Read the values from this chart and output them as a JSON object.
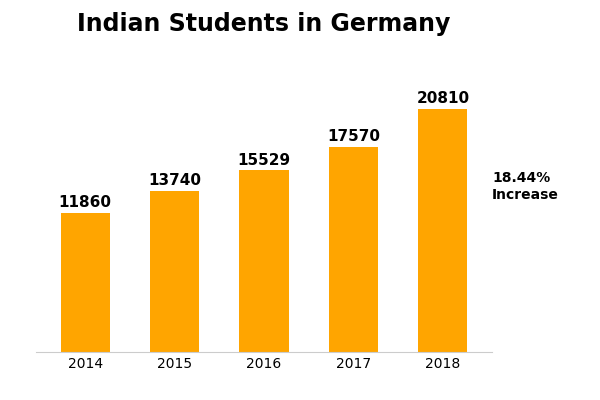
{
  "title": "Indian Students in Germany",
  "categories": [
    "2014",
    "2015",
    "2016",
    "2017",
    "2018"
  ],
  "values": [
    11860,
    13740,
    15529,
    17570,
    20810
  ],
  "bar_color": "#FFA500",
  "background_color": "#ffffff",
  "title_fontsize": 17,
  "label_fontsize": 11,
  "tick_fontsize": 10,
  "annotation_text": "18.44%\nIncrease",
  "annotation_fontsize": 10,
  "ylim": [
    0,
    26000
  ],
  "grid_color": "#cccccc",
  "yticks": [
    5000,
    10000,
    15000,
    20000,
    25000
  ]
}
